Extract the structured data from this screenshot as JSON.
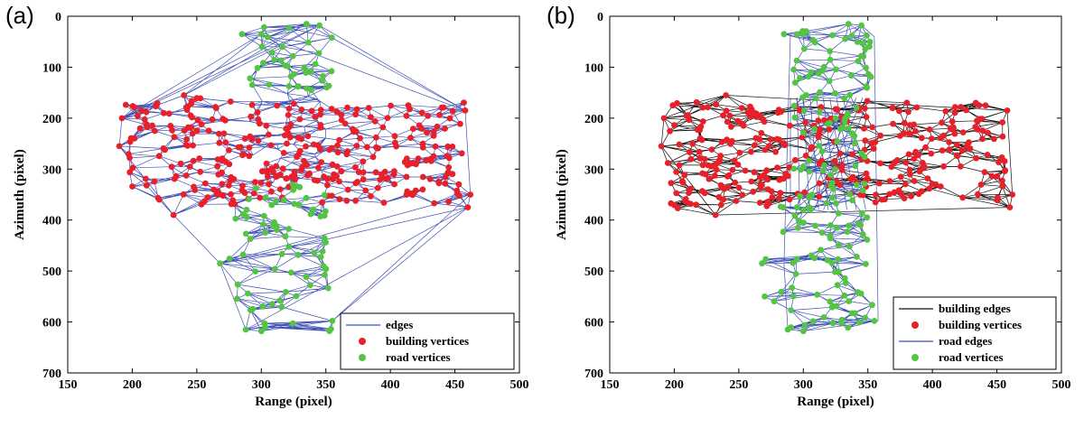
{
  "colors": {
    "edges": "#3f51b5",
    "building_edges": "#111111",
    "road_edges": "#3f51b5",
    "building_vertices": "#e8202a",
    "road_vertices": "#54c443"
  },
  "chart_data": [
    {
      "type": "scatter",
      "panel_label": "(a)",
      "xlabel": "Range (pixel)",
      "ylabel": "Azimuth (pixel)",
      "xlim": [
        150,
        500
      ],
      "ylim": [
        0,
        700
      ],
      "y_reversed": true,
      "xticks": [
        150,
        200,
        250,
        300,
        350,
        400,
        450,
        500
      ],
      "yticks": [
        0,
        100,
        200,
        300,
        400,
        500,
        600,
        700
      ],
      "legend": [
        "edges",
        "building vertices",
        "road vertices"
      ],
      "legend_position": "bottom-right",
      "series": [
        {
          "name": "building vertices",
          "region": {
            "x": [
              190,
              462
            ],
            "y": [
              150,
              390
            ]
          }
        },
        {
          "name": "road vertices",
          "region": {
            "x": [
              265,
              360
            ],
            "y": [
              15,
              620
            ]
          }
        }
      ]
    },
    {
      "type": "scatter",
      "panel_label": "(b)",
      "xlabel": "Range (pixel)",
      "ylabel": "Azimuth (pixel)",
      "xlim": [
        150,
        500
      ],
      "ylim": [
        0,
        700
      ],
      "y_reversed": true,
      "xticks": [
        150,
        200,
        250,
        300,
        350,
        400,
        450,
        500
      ],
      "yticks": [
        0,
        100,
        200,
        300,
        400,
        500,
        600,
        700
      ],
      "legend": [
        "building edges",
        "building vertices",
        "road edges",
        "road vertices"
      ],
      "legend_position": "bottom-right",
      "series": [
        {
          "name": "building vertices",
          "region": {
            "x": [
              190,
              462
            ],
            "y": [
              150,
              390
            ]
          }
        },
        {
          "name": "road vertices",
          "region": {
            "x": [
              285,
              360
            ],
            "y": [
              15,
              620
            ]
          }
        }
      ]
    }
  ]
}
